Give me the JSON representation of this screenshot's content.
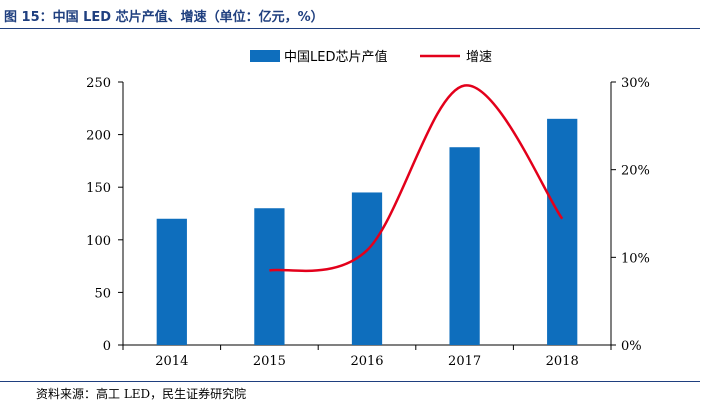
{
  "header": {
    "title": "图 15：中国 LED 芯片产值、增速（单位：亿元，%）"
  },
  "footer": {
    "source": "资料来源：高工 LED，民生证券研究院"
  },
  "colors": {
    "bar": "#0e6ebd",
    "line": "#e3001b",
    "rule": "#1f3f7f"
  },
  "chart_data": {
    "type": "bar",
    "categories": [
      "2014",
      "2015",
      "2016",
      "2017",
      "2018"
    ],
    "series": [
      {
        "name": "中国LED芯片产值",
        "type": "bar",
        "axis": "left",
        "values": [
          120,
          130,
          145,
          188,
          215
        ]
      },
      {
        "name": "增速",
        "type": "line",
        "axis": "right",
        "values": [
          null,
          8.5,
          10.8,
          29.6,
          14.4
        ]
      }
    ],
    "y_left": {
      "min": 0,
      "max": 250,
      "ticks": [
        "0",
        "50",
        "100",
        "150",
        "200",
        "250"
      ]
    },
    "y_right": {
      "min": 0,
      "max": 30,
      "ticks": [
        "0%",
        "10%",
        "20%",
        "30%"
      ]
    },
    "legend": "top-center",
    "grid": false
  }
}
